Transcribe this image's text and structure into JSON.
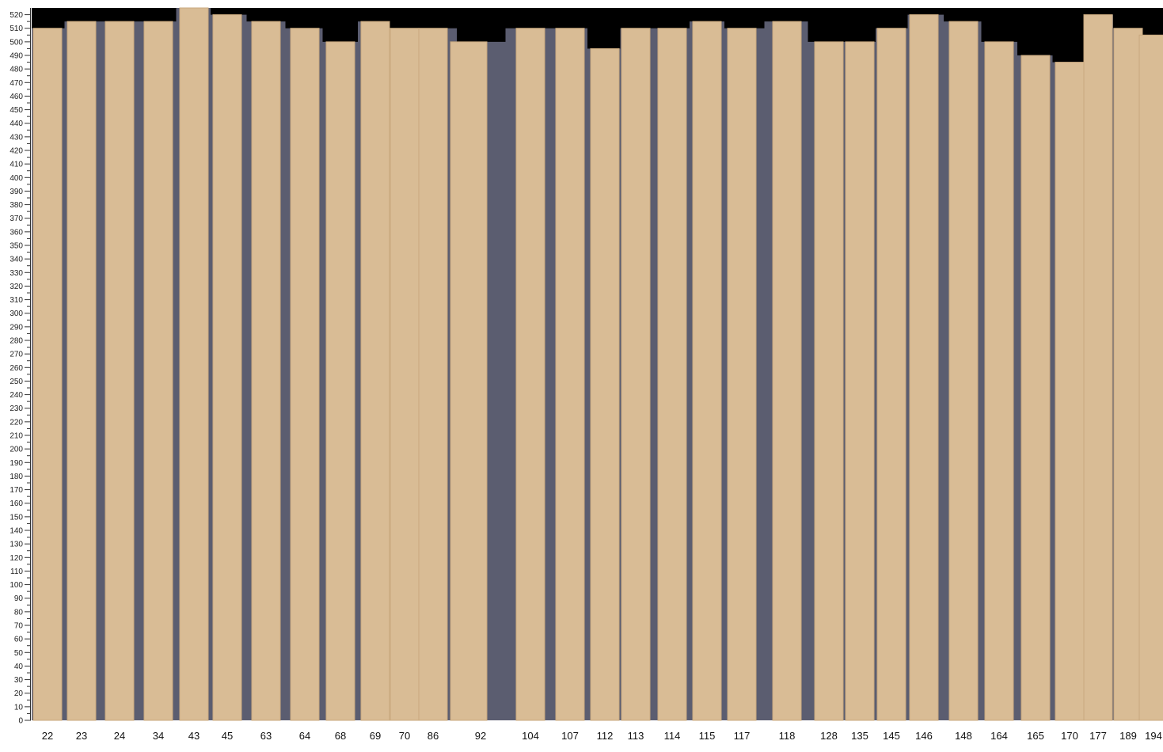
{
  "chart_data": {
    "type": "bar",
    "title": "",
    "xlabel": "",
    "ylabel": "",
    "categories": [
      "22",
      "23",
      "24",
      "34",
      "43",
      "45",
      "63",
      "64",
      "68",
      "69",
      "70",
      "86",
      "92",
      "104",
      "107",
      "112",
      "113",
      "114",
      "115",
      "117",
      "118",
      "128",
      "135",
      "145",
      "146",
      "148",
      "164",
      "165",
      "170",
      "177",
      "189",
      "194"
    ],
    "values": [
      510,
      515,
      515,
      515,
      525,
      520,
      515,
      510,
      500,
      515,
      510,
      510,
      500,
      510,
      510,
      495,
      510,
      510,
      515,
      510,
      515,
      500,
      500,
      510,
      520,
      515,
      500,
      490,
      485,
      520,
      510,
      505
    ],
    "ylim": [
      0,
      525
    ],
    "yticks_step": 10,
    "ytick_max": 520,
    "grid": false,
    "legend": "none",
    "colors": {
      "background_top": "#000000",
      "slot": "#5b5d70",
      "board": "#d9bc95",
      "board_edge": "#c9a97e"
    }
  }
}
